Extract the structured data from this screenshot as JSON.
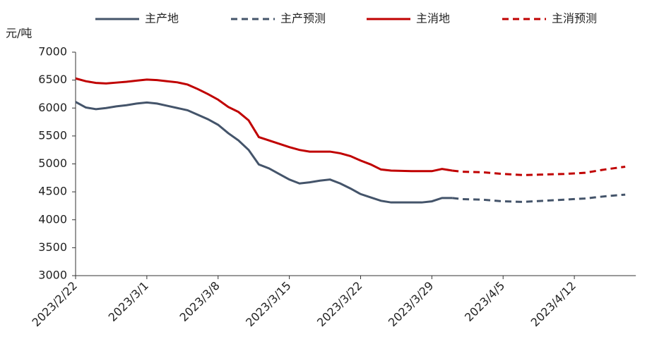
{
  "chart_data": {
    "type": "line",
    "y_unit": "元/吨",
    "x": [
      "2023/2/22",
      "2023/2/23",
      "2023/2/24",
      "2023/2/25",
      "2023/2/26",
      "2023/2/27",
      "2023/2/28",
      "2023/3/1",
      "2023/3/2",
      "2023/3/3",
      "2023/3/4",
      "2023/3/5",
      "2023/3/6",
      "2023/3/7",
      "2023/3/8",
      "2023/3/9",
      "2023/3/10",
      "2023/3/11",
      "2023/3/12",
      "2023/3/13",
      "2023/3/14",
      "2023/3/15",
      "2023/3/16",
      "2023/3/17",
      "2023/3/18",
      "2023/3/19",
      "2023/3/20",
      "2023/3/21",
      "2023/3/22",
      "2023/3/23",
      "2023/3/24",
      "2023/3/25",
      "2023/3/26",
      "2023/3/27",
      "2023/3/28",
      "2023/3/29",
      "2023/3/30",
      "2023/3/31",
      "2023/4/1",
      "2023/4/2",
      "2023/4/3",
      "2023/4/4",
      "2023/4/5",
      "2023/4/6",
      "2023/4/7",
      "2023/4/8",
      "2023/4/9",
      "2023/4/10",
      "2023/4/11",
      "2023/4/12",
      "2023/4/13",
      "2023/4/14",
      "2023/4/15",
      "2023/4/16",
      "2023/4/17"
    ],
    "xticks": [
      "2023/2/22",
      "2023/3/1",
      "2023/3/8",
      "2023/3/15",
      "2023/3/22",
      "2023/3/29",
      "2023/4/5",
      "2023/4/12"
    ],
    "series": [
      {
        "name": "主产地",
        "color": "#44546a",
        "dash": false,
        "values": [
          6110,
          6010,
          5980,
          6000,
          6030,
          6050,
          6080,
          6100,
          6080,
          6040,
          6000,
          5960,
          5880,
          5800,
          5700,
          5550,
          5420,
          5250,
          4990,
          4920,
          4820,
          4720,
          4650,
          4670,
          4700,
          4720,
          4650,
          4560,
          4460,
          4400,
          4340,
          4310,
          4310,
          4310,
          4310,
          4330,
          4390,
          4390,
          null,
          null,
          null,
          null,
          null,
          null,
          null,
          null,
          null,
          null,
          null,
          null,
          null,
          null,
          null,
          null,
          null
        ]
      },
      {
        "name": "主产预测",
        "color": "#44546a",
        "dash": true,
        "values": [
          null,
          null,
          null,
          null,
          null,
          null,
          null,
          null,
          null,
          null,
          null,
          null,
          null,
          null,
          null,
          null,
          null,
          null,
          null,
          null,
          null,
          null,
          null,
          null,
          null,
          null,
          null,
          null,
          null,
          null,
          null,
          null,
          null,
          null,
          null,
          null,
          null,
          4390,
          4370,
          4365,
          4360,
          4345,
          4330,
          4325,
          4320,
          4330,
          4340,
          4350,
          4360,
          4370,
          4380,
          4400,
          4420,
          4435,
          4450
        ]
      },
      {
        "name": "主消地",
        "color": "#c00000",
        "dash": false,
        "values": [
          6530,
          6480,
          6450,
          6440,
          6455,
          6470,
          6490,
          6510,
          6500,
          6480,
          6460,
          6420,
          6340,
          6250,
          6150,
          6020,
          5930,
          5780,
          5480,
          5420,
          5360,
          5300,
          5250,
          5220,
          5220,
          5220,
          5190,
          5140,
          5060,
          4990,
          4900,
          4880,
          4875,
          4870,
          4870,
          4870,
          4910,
          4880,
          null,
          null,
          null,
          null,
          null,
          null,
          null,
          null,
          null,
          null,
          null,
          null,
          null,
          null,
          null,
          null,
          null
        ]
      },
      {
        "name": "主消预测",
        "color": "#c00000",
        "dash": true,
        "values": [
          null,
          null,
          null,
          null,
          null,
          null,
          null,
          null,
          null,
          null,
          null,
          null,
          null,
          null,
          null,
          null,
          null,
          null,
          null,
          null,
          null,
          null,
          null,
          null,
          null,
          null,
          null,
          null,
          null,
          null,
          null,
          null,
          null,
          null,
          null,
          null,
          null,
          4880,
          4860,
          4855,
          4850,
          4835,
          4820,
          4810,
          4800,
          4805,
          4810,
          4815,
          4820,
          4830,
          4840,
          4870,
          4900,
          4925,
          4950
        ]
      }
    ],
    "ylim": [
      3000,
      7000
    ],
    "yticks": [
      3000,
      3500,
      4000,
      4500,
      5000,
      5500,
      6000,
      6500,
      7000
    ]
  }
}
